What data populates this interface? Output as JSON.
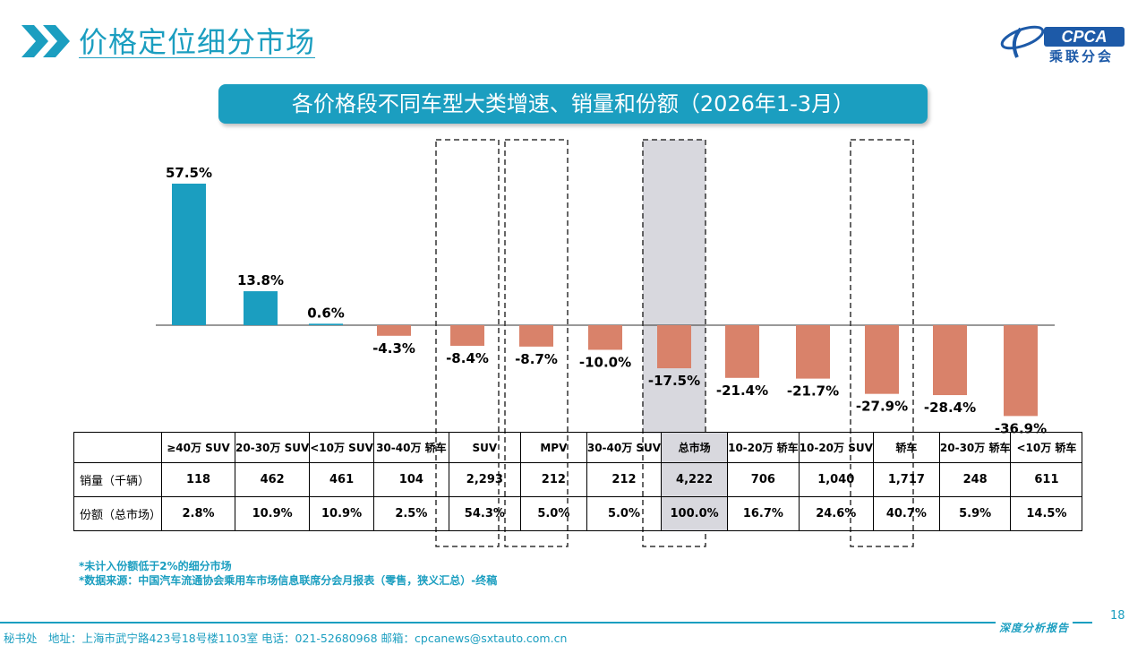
{
  "page": {
    "title": "价格定位细分市场",
    "logo_text": "CPCA",
    "logo_sub": "乘联分会",
    "page_number": "18"
  },
  "chart_data": {
    "type": "bar",
    "title": "各价格段不同车型大类增速、销量和份额（2026年1-3月）",
    "categories": [
      "≥40万 SUV",
      "20-30万 SUV",
      "<10万 SUV",
      "30-40万 轿车",
      "SUV",
      "MPV",
      "30-40万 SUV",
      "总市场",
      "10-20万 轿车",
      "10-20万 SUV",
      "轿车",
      "20-30万 轿车",
      "<10万 轿车"
    ],
    "values": [
      57.5,
      13.8,
      0.6,
      -4.3,
      -8.4,
      -8.7,
      -10.0,
      -17.5,
      -21.4,
      -21.7,
      -27.9,
      -28.4,
      -36.9
    ],
    "labels": [
      "57.5%",
      "13.8%",
      "0.6%",
      "-4.3%",
      "-8.4%",
      "-8.7%",
      "-10.0%",
      "-17.5%",
      "-21.4%",
      "-21.7%",
      "-27.9%",
      "-28.4%",
      "-36.9%"
    ],
    "positive_color": "#1b9ec0",
    "negative_color": "#d9826a",
    "highlighted_total": "总市场",
    "dashed_boxes": [
      "SUV",
      "MPV",
      "总市场",
      "轿车"
    ],
    "table": {
      "rows": [
        {
          "label": "销量（千辆）",
          "values": [
            "118",
            "462",
            "461",
            "104",
            "2,293",
            "212",
            "212",
            "4,222",
            "706",
            "1,040",
            "1,717",
            "248",
            "611"
          ]
        },
        {
          "label": "份额（总市场）",
          "values": [
            "2.8%",
            "10.9%",
            "10.9%",
            "2.5%",
            "54.3%",
            "5.0%",
            "5.0%",
            "100.0%",
            "16.7%",
            "24.6%",
            "40.7%",
            "5.9%",
            "14.5%"
          ]
        }
      ]
    }
  },
  "footnotes": {
    "note1": "*未计入份额低于2%的细分市场",
    "note2": "*数据来源：中国汽车流通协会乘用车市场信息联席分会月报表（零售，狭义汇总）-终稿"
  },
  "footer": {
    "info": "秘书处　地址：上海市武宁路423号18号楼1103室  电话：021-52680968   邮箱：cpcanews@sxtauto.com.cn",
    "label": "深度分析报告"
  },
  "colors": {
    "accent": "#1b9ec0",
    "brand": "#1d5aa8",
    "total_highlight": "#d8d8de"
  }
}
